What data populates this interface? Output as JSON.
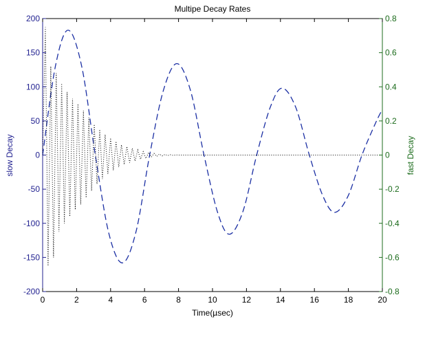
{
  "chart_data": {
    "type": "line",
    "title": "Multipe Decay Rates",
    "xlabel": "Time(µsec)",
    "ylabel": "slow Decay",
    "y2label": "fast Decay",
    "xlim": [
      0,
      20
    ],
    "ylim": [
      -200,
      200
    ],
    "y2lim": [
      -0.8,
      0.8
    ],
    "xticks": [
      "0",
      "2",
      "4",
      "6",
      "8",
      "10",
      "12",
      "14",
      "16",
      "18",
      "20"
    ],
    "yticks": [
      "-200",
      "-150",
      "-100",
      "-50",
      "0",
      "50",
      "100",
      "150",
      "200"
    ],
    "y2ticks": [
      "-0.8",
      "-0.6",
      "-0.4",
      "-0.2",
      "0",
      "0.2",
      "0.4",
      "0.6",
      "0.8"
    ],
    "grid": false,
    "colors": {
      "left_axis": "#1f1f8f",
      "right_axis": "#1b6b1b",
      "slow_line": "#1a2ea3",
      "fast_line": "#000000"
    },
    "series": [
      {
        "axis": "left",
        "style": "dashed",
        "x": [
          0,
          0.75,
          1.5,
          2.3,
          3.1,
          3.9,
          4.7,
          5.5,
          6.3,
          7.1,
          7.9,
          8.7,
          9.5,
          10.3,
          11.0,
          11.8,
          12.6,
          13.4,
          14.1,
          14.9,
          15.7,
          16.5,
          17.2,
          18.0,
          18.8,
          19.6,
          20
        ],
        "y": [
          0,
          130,
          183,
          130,
          0,
          -115,
          -158,
          -112,
          0,
          94,
          134,
          95,
          0,
          -84,
          -116,
          -82,
          0,
          70,
          98,
          70,
          0,
          -60,
          -84,
          -59,
          0,
          47,
          67
        ]
      },
      {
        "axis": "right",
        "style": "dotted",
        "x": [
          0.0,
          0.16,
          0.32,
          0.48,
          0.64,
          0.8,
          0.96,
          1.12,
          1.28,
          1.44,
          1.6,
          1.76,
          1.92,
          2.08,
          2.24,
          2.4,
          2.56,
          2.72,
          2.88,
          3.04,
          3.2,
          3.36,
          3.52,
          3.68,
          3.84,
          4.0,
          4.16,
          4.32,
          4.48,
          4.64,
          4.8,
          4.96,
          5.12,
          5.28,
          5.44,
          5.6,
          5.76,
          5.92,
          6.08,
          6.24,
          6.4,
          6.56,
          6.72,
          6.88,
          7.04,
          7.2,
          7.36,
          7.52,
          7.68,
          7.84,
          8.0,
          9,
          10,
          12,
          14,
          16,
          18,
          20
        ],
        "y": [
          0,
          0.75,
          -0.65,
          0.52,
          -0.6,
          0.48,
          -0.45,
          0.42,
          -0.4,
          0.37,
          -0.36,
          0.33,
          -0.32,
          0.3,
          -0.29,
          0.26,
          -0.25,
          0.22,
          -0.21,
          0.18,
          -0.17,
          0.15,
          -0.14,
          0.12,
          -0.11,
          0.1,
          -0.09,
          0.08,
          -0.07,
          0.06,
          -0.055,
          0.05,
          -0.045,
          0.04,
          -0.035,
          0.03,
          -0.025,
          0.02,
          -0.02,
          0.015,
          -0.012,
          0.01,
          -0.008,
          0.006,
          -0.005,
          0.004,
          -0.003,
          0.002,
          -0.002,
          0.001,
          0,
          0,
          0,
          0,
          0,
          0,
          0,
          0
        ]
      }
    ]
  }
}
